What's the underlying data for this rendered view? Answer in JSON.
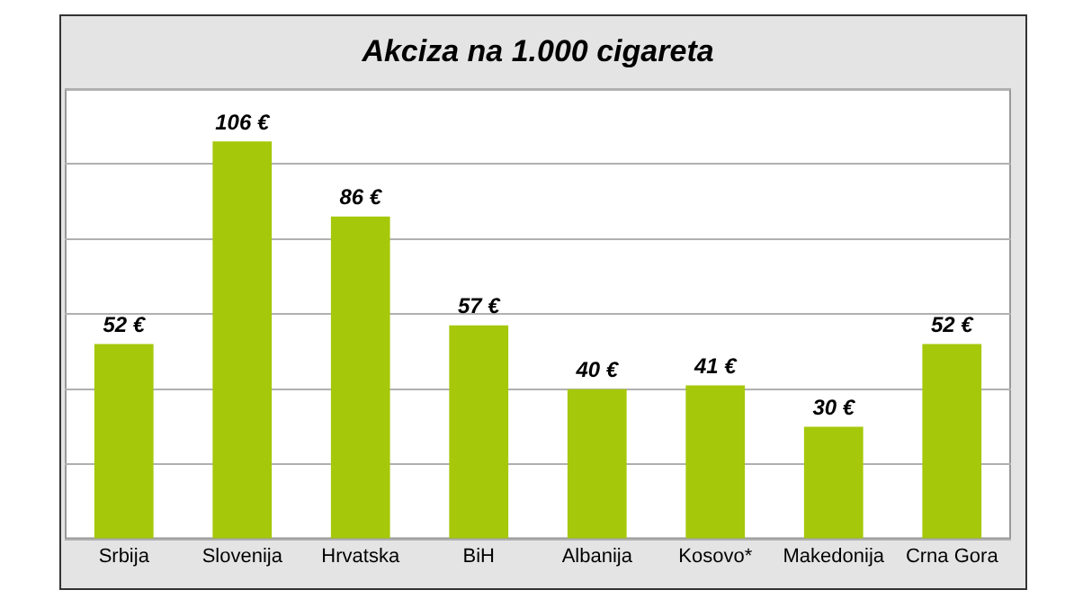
{
  "chart_data": {
    "type": "bar",
    "title": "Akciza na 1.000 cigareta",
    "categories": [
      "Srbija",
      "Slovenija",
      "Hrvatska",
      "BiH",
      "Albanija",
      "Kosovo*",
      "Makedonija",
      "Crna Gora"
    ],
    "values": [
      52,
      106,
      86,
      57,
      40,
      41,
      30,
      52
    ],
    "value_labels": [
      "52 €",
      "106 €",
      "86 €",
      "57 €",
      "40 €",
      "41 €",
      "30 €",
      "52 €"
    ],
    "color": "#a5c80a",
    "ylim": [
      0,
      120
    ],
    "yticks": [
      {
        "value": 0,
        "label": null
      },
      {
        "value": 20,
        "label": null
      },
      {
        "value": 40,
        "label": null
      },
      {
        "value": 60,
        "label": null
      },
      {
        "value": 80,
        "label": null
      },
      {
        "value": 100,
        "label": null
      },
      {
        "value": 120,
        "label": null
      }
    ],
    "grid": "y",
    "tick_labels": "x",
    "legend": false
  }
}
